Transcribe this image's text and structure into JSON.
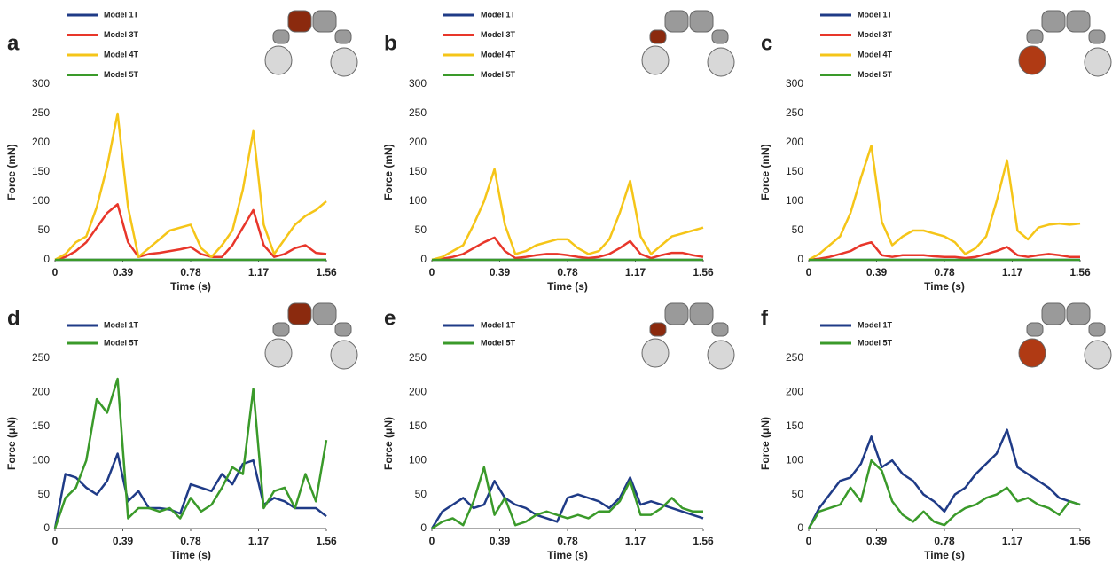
{
  "chart_data": [
    {
      "type": "line",
      "panel_label": "a",
      "xlabel": "Time (s)",
      "ylabel": "Force (mN)",
      "x": [
        0,
        0.06,
        0.12,
        0.18,
        0.24,
        0.3,
        0.36,
        0.42,
        0.48,
        0.54,
        0.6,
        0.66,
        0.72,
        0.78,
        0.84,
        0.9,
        0.96,
        1.02,
        1.08,
        1.14,
        1.2,
        1.26,
        1.32,
        1.38,
        1.44,
        1.5,
        1.56
      ],
      "xlim": [
        0,
        1.56
      ],
      "xticks": [
        0,
        0.39,
        0.78,
        1.17,
        1.56
      ],
      "ylim": [
        0,
        300
      ],
      "yticks": [
        0,
        50,
        100,
        150,
        200,
        250,
        300
      ],
      "series": [
        {
          "name": "Model 1T",
          "color": "#1f3b87",
          "values": [
            0,
            0,
            0,
            0,
            0,
            0,
            0,
            0,
            0,
            0,
            0,
            0,
            0,
            0,
            0,
            0,
            0,
            0,
            0,
            0,
            0,
            0,
            0,
            0,
            0,
            0,
            0
          ]
        },
        {
          "name": "Model 3T",
          "color": "#e8362a",
          "values": [
            0,
            5,
            15,
            30,
            55,
            80,
            95,
            30,
            5,
            10,
            12,
            15,
            18,
            22,
            10,
            5,
            5,
            25,
            55,
            85,
            25,
            5,
            10,
            20,
            25,
            12,
            10
          ]
        },
        {
          "name": "Model 4T",
          "color": "#f5c518",
          "values": [
            0,
            10,
            30,
            40,
            90,
            160,
            250,
            90,
            5,
            20,
            35,
            50,
            55,
            60,
            20,
            5,
            25,
            50,
            120,
            220,
            60,
            10,
            35,
            60,
            75,
            85,
            100
          ]
        },
        {
          "name": "Model 5T",
          "color": "#3a9a2a",
          "values": [
            0,
            0,
            0,
            0,
            0,
            0,
            0,
            0,
            0,
            0,
            0,
            0,
            0,
            0,
            0,
            0,
            0,
            0,
            0,
            0,
            0,
            0,
            0,
            0,
            0,
            0,
            0
          ]
        }
      ]
    },
    {
      "type": "line",
      "panel_label": "b",
      "xlabel": "Time (s)",
      "ylabel": "Force (mN)",
      "x": [
        0,
        0.06,
        0.12,
        0.18,
        0.24,
        0.3,
        0.36,
        0.42,
        0.48,
        0.54,
        0.6,
        0.66,
        0.72,
        0.78,
        0.84,
        0.9,
        0.96,
        1.02,
        1.08,
        1.14,
        1.2,
        1.26,
        1.32,
        1.38,
        1.44,
        1.5,
        1.56
      ],
      "xlim": [
        0,
        1.56
      ],
      "xticks": [
        0,
        0.39,
        0.78,
        1.17,
        1.56
      ],
      "ylim": [
        0,
        300
      ],
      "yticks": [
        0,
        50,
        100,
        150,
        200,
        250,
        300
      ],
      "series": [
        {
          "name": "Model 1T",
          "color": "#1f3b87",
          "values": [
            0,
            0,
            0,
            0,
            0,
            0,
            0,
            0,
            0,
            0,
            0,
            0,
            0,
            0,
            0,
            0,
            0,
            0,
            0,
            0,
            0,
            0,
            0,
            0,
            0,
            0,
            0
          ]
        },
        {
          "name": "Model 3T",
          "color": "#e8362a",
          "values": [
            0,
            2,
            5,
            10,
            20,
            30,
            38,
            15,
            3,
            5,
            8,
            10,
            10,
            8,
            5,
            3,
            5,
            10,
            20,
            32,
            10,
            3,
            8,
            12,
            12,
            8,
            5
          ]
        },
        {
          "name": "Model 4T",
          "color": "#f5c518",
          "values": [
            0,
            5,
            15,
            25,
            60,
            100,
            155,
            60,
            10,
            15,
            25,
            30,
            35,
            35,
            20,
            10,
            15,
            35,
            80,
            135,
            40,
            10,
            25,
            40,
            45,
            50,
            55
          ]
        },
        {
          "name": "Model 5T",
          "color": "#3a9a2a",
          "values": [
            0,
            0,
            0,
            0,
            0,
            0,
            0,
            0,
            0,
            0,
            0,
            0,
            0,
            0,
            0,
            0,
            0,
            0,
            0,
            0,
            0,
            0,
            0,
            0,
            0,
            0,
            0
          ]
        }
      ]
    },
    {
      "type": "line",
      "panel_label": "c",
      "xlabel": "Time (s)",
      "ylabel": "Force (mN)",
      "x": [
        0,
        0.06,
        0.12,
        0.18,
        0.24,
        0.3,
        0.36,
        0.42,
        0.48,
        0.54,
        0.6,
        0.66,
        0.72,
        0.78,
        0.84,
        0.9,
        0.96,
        1.02,
        1.08,
        1.14,
        1.2,
        1.26,
        1.32,
        1.38,
        1.44,
        1.5,
        1.56
      ],
      "xlim": [
        0,
        1.56
      ],
      "xticks": [
        0,
        0.39,
        0.78,
        1.17,
        1.56
      ],
      "ylim": [
        0,
        300
      ],
      "yticks": [
        0,
        50,
        100,
        150,
        200,
        250,
        300
      ],
      "series": [
        {
          "name": "Model 1T",
          "color": "#1f3b87",
          "values": [
            0,
            0,
            0,
            0,
            0,
            0,
            0,
            0,
            0,
            0,
            0,
            0,
            0,
            0,
            0,
            0,
            0,
            0,
            0,
            0,
            0,
            0,
            0,
            0,
            0,
            0,
            0
          ]
        },
        {
          "name": "Model 3T",
          "color": "#e8362a",
          "values": [
            0,
            2,
            5,
            10,
            15,
            25,
            30,
            8,
            5,
            8,
            8,
            8,
            6,
            5,
            5,
            3,
            5,
            10,
            15,
            22,
            8,
            5,
            8,
            10,
            8,
            5,
            5
          ]
        },
        {
          "name": "Model 4T",
          "color": "#f5c518",
          "values": [
            0,
            10,
            25,
            40,
            80,
            140,
            195,
            65,
            25,
            40,
            50,
            50,
            45,
            40,
            30,
            10,
            20,
            40,
            100,
            170,
            50,
            35,
            55,
            60,
            62,
            60,
            62
          ]
        },
        {
          "name": "Model 5T",
          "color": "#3a9a2a",
          "values": [
            0,
            0,
            0,
            0,
            0,
            0,
            0,
            0,
            0,
            0,
            0,
            0,
            0,
            0,
            0,
            0,
            0,
            0,
            0,
            0,
            0,
            0,
            0,
            0,
            0,
            0,
            0
          ]
        }
      ]
    },
    {
      "type": "line",
      "panel_label": "d",
      "xlabel": "Time (s)",
      "ylabel": "Force (μN)",
      "x": [
        0,
        0.06,
        0.12,
        0.18,
        0.24,
        0.3,
        0.36,
        0.42,
        0.48,
        0.54,
        0.6,
        0.66,
        0.72,
        0.78,
        0.84,
        0.9,
        0.96,
        1.02,
        1.08,
        1.14,
        1.2,
        1.26,
        1.32,
        1.38,
        1.44,
        1.5,
        1.56
      ],
      "xlim": [
        0,
        1.56
      ],
      "xticks": [
        0,
        0.39,
        0.78,
        1.17,
        1.56
      ],
      "ylim": [
        0,
        250
      ],
      "yticks": [
        0,
        50,
        100,
        150,
        200,
        250
      ],
      "series": [
        {
          "name": "Model 1T",
          "color": "#1f3b87",
          "values": [
            0,
            80,
            75,
            60,
            50,
            70,
            110,
            40,
            55,
            30,
            30,
            28,
            22,
            65,
            60,
            55,
            80,
            65,
            95,
            100,
            35,
            45,
            40,
            30,
            30,
            30,
            18
          ]
        },
        {
          "name": "Model 5T",
          "color": "#3a9a2a",
          "values": [
            0,
            45,
            60,
            100,
            190,
            170,
            220,
            15,
            30,
            30,
            25,
            30,
            15,
            45,
            25,
            35,
            60,
            90,
            80,
            205,
            30,
            55,
            60,
            30,
            80,
            40,
            130
          ]
        }
      ]
    },
    {
      "type": "line",
      "panel_label": "e",
      "xlabel": "Time (s)",
      "ylabel": "Force (μN)",
      "x": [
        0,
        0.06,
        0.12,
        0.18,
        0.24,
        0.3,
        0.36,
        0.42,
        0.48,
        0.54,
        0.6,
        0.66,
        0.72,
        0.78,
        0.84,
        0.9,
        0.96,
        1.02,
        1.08,
        1.14,
        1.2,
        1.26,
        1.32,
        1.38,
        1.44,
        1.5,
        1.56
      ],
      "xlim": [
        0,
        1.56
      ],
      "xticks": [
        0,
        0.39,
        0.78,
        1.17,
        1.56
      ],
      "ylim": [
        0,
        250
      ],
      "yticks": [
        0,
        50,
        100,
        150,
        200,
        250
      ],
      "series": [
        {
          "name": "Model 1T",
          "color": "#1f3b87",
          "values": [
            0,
            25,
            35,
            45,
            30,
            35,
            70,
            45,
            35,
            30,
            20,
            15,
            10,
            45,
            50,
            45,
            40,
            30,
            45,
            75,
            35,
            40,
            35,
            30,
            25,
            20,
            15
          ]
        },
        {
          "name": "Model 5T",
          "color": "#3a9a2a",
          "values": [
            0,
            10,
            15,
            5,
            40,
            90,
            20,
            45,
            5,
            10,
            20,
            25,
            20,
            15,
            20,
            15,
            25,
            25,
            40,
            70,
            20,
            20,
            30,
            45,
            30,
            25,
            25
          ]
        }
      ]
    },
    {
      "type": "line",
      "panel_label": "f",
      "xlabel": "Time (s)",
      "ylabel": "Force (μN)",
      "x": [
        0,
        0.06,
        0.12,
        0.18,
        0.24,
        0.3,
        0.36,
        0.42,
        0.48,
        0.54,
        0.6,
        0.66,
        0.72,
        0.78,
        0.84,
        0.9,
        0.96,
        1.02,
        1.08,
        1.14,
        1.2,
        1.26,
        1.32,
        1.38,
        1.44,
        1.5,
        1.56
      ],
      "xlim": [
        0,
        1.56
      ],
      "xticks": [
        0,
        0.39,
        0.78,
        1.17,
        1.56
      ],
      "ylim": [
        0,
        250
      ],
      "yticks": [
        0,
        50,
        100,
        150,
        200,
        250
      ],
      "series": [
        {
          "name": "Model 1T",
          "color": "#1f3b87",
          "values": [
            0,
            30,
            50,
            70,
            75,
            95,
            135,
            90,
            100,
            80,
            70,
            50,
            40,
            25,
            50,
            60,
            80,
            95,
            110,
            145,
            90,
            80,
            70,
            60,
            45,
            40,
            35
          ]
        },
        {
          "name": "Model 5T",
          "color": "#3a9a2a",
          "values": [
            0,
            25,
            30,
            35,
            60,
            40,
            100,
            85,
            40,
            20,
            10,
            25,
            10,
            5,
            20,
            30,
            35,
            45,
            50,
            60,
            40,
            45,
            35,
            30,
            20,
            40,
            35
          ]
        }
      ]
    }
  ]
}
